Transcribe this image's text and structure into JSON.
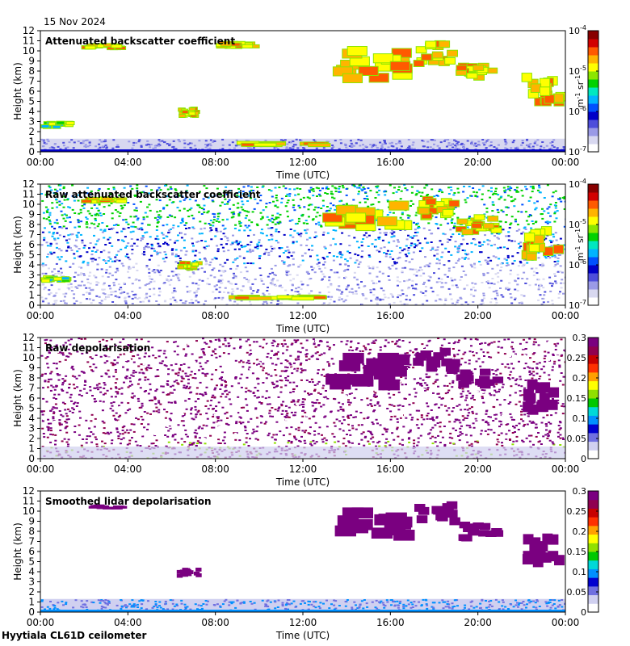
{
  "header": {
    "date": "15 Nov 2024"
  },
  "footer": {
    "site": "Hyytiala CL61D ceilometer"
  },
  "colors": {
    "log_scale": [
      "#ffffff",
      "#d8d8f0",
      "#9a9ae6",
      "#4e4edb",
      "#0000c8",
      "#0050ff",
      "#00b4ff",
      "#00e8c0",
      "#00d200",
      "#8ce600",
      "#ffff00",
      "#ffb400",
      "#ff5a00",
      "#d20000",
      "#880000"
    ],
    "depol_scale": [
      "#ffffff",
      "#d0d0f0",
      "#7070e0",
      "#0000d0",
      "#0090ff",
      "#00d8d8",
      "#00c800",
      "#90e000",
      "#ffff00",
      "#ffa000",
      "#ff3000",
      "#c80000",
      "#900050",
      "#7a0080"
    ]
  },
  "chart_data": [
    {
      "type": "heatmap",
      "title": "Attenuated backscatter coefficient",
      "xlabel": "Time (UTC)",
      "ylabel": "Height (km)",
      "x_ticks": [
        "00:00",
        "04:00",
        "08:00",
        "12:00",
        "16:00",
        "20:00",
        "00:00"
      ],
      "y_ticks": [
        "0",
        "1",
        "2",
        "3",
        "4",
        "5",
        "6",
        "7",
        "8",
        "9",
        "10",
        "11",
        "12"
      ],
      "ylim": [
        0,
        12
      ],
      "xlim_hours": [
        0,
        24
      ],
      "colorbar": {
        "scale": "log",
        "ticks": [
          "10",
          "10",
          "10",
          "10"
        ],
        "exponents": [
          "-7",
          "-6",
          "-5",
          "-4"
        ],
        "unit_main": "m",
        "unit_exp1": "-1",
        "unit_mid": " sr",
        "unit_exp2": "-1"
      },
      "layers": [
        {
          "t0": 0.0,
          "t1": 24.0,
          "h0": 0.0,
          "h1": 1.3,
          "level": "boundary_layer"
        },
        {
          "t0": 8.6,
          "t1": 13.0,
          "h0": 0.7,
          "h1": 1.0,
          "level": "strong"
        },
        {
          "t0": 0.0,
          "t1": 1.5,
          "h0": 2.4,
          "h1": 3.0,
          "level": "medium"
        },
        {
          "t0": 6.2,
          "t1": 7.3,
          "h0": 3.5,
          "h1": 4.4,
          "level": "strong"
        },
        {
          "t0": 1.8,
          "t1": 3.8,
          "h0": 10.3,
          "h1": 10.7,
          "level": "strong"
        },
        {
          "t0": 8.0,
          "t1": 10.0,
          "h0": 10.4,
          "h1": 10.9,
          "level": "strong"
        },
        {
          "t0": 12.9,
          "t1": 16.8,
          "h0": 6.8,
          "h1": 10.5,
          "level": "strong"
        },
        {
          "t0": 17.0,
          "t1": 19.0,
          "h0": 8.5,
          "h1": 11.0,
          "level": "strong"
        },
        {
          "t0": 19.0,
          "t1": 21.0,
          "h0": 7.0,
          "h1": 9.0,
          "level": "strong"
        },
        {
          "t0": 22.0,
          "t1": 23.9,
          "h0": 4.5,
          "h1": 8.0,
          "level": "strong"
        }
      ]
    },
    {
      "type": "heatmap",
      "title": "Raw attenuated backscatter coefficient",
      "xlabel": "Time (UTC)",
      "ylabel": "Height (km)",
      "x_ticks": [
        "00:00",
        "04:00",
        "08:00",
        "12:00",
        "16:00",
        "20:00",
        "00:00"
      ],
      "y_ticks": [
        "0",
        "1",
        "2",
        "3",
        "4",
        "5",
        "6",
        "7",
        "8",
        "9",
        "10",
        "11",
        "12"
      ],
      "ylim": [
        0,
        12
      ],
      "xlim_hours": [
        0,
        24
      ],
      "colorbar": {
        "scale": "log",
        "ticks": [
          "10",
          "10",
          "10",
          "10"
        ],
        "exponents": [
          "-7",
          "-6",
          "-5",
          "-4"
        ],
        "unit_main": "m",
        "unit_exp1": "-1",
        "unit_mid": " sr",
        "unit_exp2": "-1"
      },
      "layers": [
        {
          "t0": 0.0,
          "t1": 24.0,
          "h0": 0.0,
          "h1": 12.0,
          "level": "noise"
        },
        {
          "t0": 8.6,
          "t1": 13.0,
          "h0": 0.7,
          "h1": 1.0,
          "level": "strong"
        },
        {
          "t0": 0.0,
          "t1": 1.5,
          "h0": 2.4,
          "h1": 3.0,
          "level": "medium"
        },
        {
          "t0": 6.2,
          "t1": 7.3,
          "h0": 3.5,
          "h1": 4.4,
          "level": "strong"
        },
        {
          "t0": 1.8,
          "t1": 3.8,
          "h0": 10.3,
          "h1": 10.7,
          "level": "strong"
        },
        {
          "t0": 12.9,
          "t1": 16.8,
          "h0": 6.8,
          "h1": 10.5,
          "level": "strong"
        },
        {
          "t0": 17.0,
          "t1": 19.0,
          "h0": 8.5,
          "h1": 11.0,
          "level": "strong"
        },
        {
          "t0": 19.0,
          "t1": 21.0,
          "h0": 7.0,
          "h1": 9.0,
          "level": "strong"
        },
        {
          "t0": 22.0,
          "t1": 23.9,
          "h0": 4.5,
          "h1": 8.0,
          "level": "strong"
        }
      ]
    },
    {
      "type": "heatmap",
      "title": "Raw depolarisation",
      "xlabel": "Time (UTC)",
      "ylabel": "Height (km)",
      "x_ticks": [
        "00:00",
        "04:00",
        "08:00",
        "12:00",
        "16:00",
        "20:00",
        "00:00"
      ],
      "y_ticks": [
        "0",
        "1",
        "2",
        "3",
        "4",
        "5",
        "6",
        "7",
        "8",
        "9",
        "10",
        "11",
        "12"
      ],
      "ylim": [
        0,
        12
      ],
      "xlim_hours": [
        0,
        24
      ],
      "colorbar": {
        "scale": "linear",
        "ticks": [
          "0",
          "0.05",
          "0.1",
          "0.15",
          "0.2",
          "0.25",
          "0.3"
        ]
      },
      "layers": [
        {
          "t0": 0.0,
          "t1": 24.0,
          "h0": 0.0,
          "h1": 12.0,
          "level": "speckle"
        },
        {
          "t0": 12.9,
          "t1": 16.8,
          "h0": 6.8,
          "h1": 10.5,
          "level": "solid"
        },
        {
          "t0": 17.0,
          "t1": 19.0,
          "h0": 8.5,
          "h1": 11.0,
          "level": "solid"
        },
        {
          "t0": 19.0,
          "t1": 21.0,
          "h0": 7.0,
          "h1": 9.0,
          "level": "solid"
        },
        {
          "t0": 22.0,
          "t1": 23.9,
          "h0": 4.5,
          "h1": 8.0,
          "level": "solid"
        }
      ]
    },
    {
      "type": "heatmap",
      "title": "Smoothed lidar depolarisation",
      "xlabel": "Time (UTC)",
      "ylabel": "Height (km)",
      "x_ticks": [
        "00:00",
        "04:00",
        "08:00",
        "12:00",
        "16:00",
        "20:00",
        "00:00"
      ],
      "y_ticks": [
        "0",
        "1",
        "2",
        "3",
        "4",
        "5",
        "6",
        "7",
        "8",
        "9",
        "10",
        "11",
        "12"
      ],
      "ylim": [
        0,
        12
      ],
      "xlim_hours": [
        0,
        24
      ],
      "colorbar": {
        "scale": "linear",
        "ticks": [
          "0",
          "0.05",
          "0.1",
          "0.15",
          "0.2",
          "0.25",
          "0.3"
        ]
      },
      "layers": [
        {
          "t0": 0.0,
          "t1": 24.0,
          "h0": 0.0,
          "h1": 1.3,
          "level": "boundary_layer"
        },
        {
          "t0": 6.2,
          "t1": 7.3,
          "h0": 3.5,
          "h1": 4.4,
          "level": "solid"
        },
        {
          "t0": 1.8,
          "t1": 3.8,
          "h0": 10.3,
          "h1": 10.7,
          "level": "solid"
        },
        {
          "t0": 12.9,
          "t1": 16.8,
          "h0": 6.8,
          "h1": 10.5,
          "level": "solid"
        },
        {
          "t0": 17.0,
          "t1": 19.0,
          "h0": 8.5,
          "h1": 11.0,
          "level": "solid"
        },
        {
          "t0": 19.0,
          "t1": 21.0,
          "h0": 7.0,
          "h1": 9.0,
          "level": "solid"
        },
        {
          "t0": 22.0,
          "t1": 23.9,
          "h0": 4.5,
          "h1": 8.0,
          "level": "solid"
        }
      ]
    }
  ]
}
